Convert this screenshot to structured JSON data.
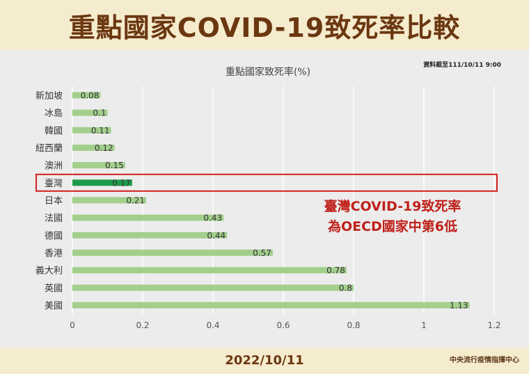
{
  "header": {
    "title": "重點國家COVID-19致死率比較"
  },
  "note": "資料截至111/10/11 9:00",
  "footer": {
    "date": "2022/10/11",
    "source": "中央流行疫情指揮中心"
  },
  "callout": {
    "line1": "臺灣COVID-19致死率",
    "line2": "為OECD國家中第6低"
  },
  "colors": {
    "bar": "#a3cf8c",
    "highlight_bar": "#1e9b4a",
    "highlight_box": "#d2201f",
    "grid": "#ffffff"
  },
  "chart_data": {
    "type": "bar",
    "orientation": "horizontal",
    "title": "重點國家致死率(%)",
    "categories": [
      "新加坡",
      "冰島",
      "韓國",
      "紐西蘭",
      "澳洲",
      "臺灣",
      "日本",
      "法國",
      "德國",
      "香港",
      "義大利",
      "英國",
      "美國"
    ],
    "values": [
      0.08,
      0.1,
      0.11,
      0.12,
      0.15,
      0.17,
      0.21,
      0.43,
      0.44,
      0.57,
      0.78,
      0.8,
      1.13
    ],
    "value_labels": [
      "0.08",
      "0.1",
      "0.11",
      "0.12",
      "0.15",
      "0.17",
      "0.21",
      "0.43",
      "0.44",
      "0.57",
      "0.78",
      "0.8",
      "1.13"
    ],
    "highlight": "臺灣",
    "xlim": [
      0,
      1.2
    ],
    "xticks": [
      0,
      0.2,
      0.4,
      0.6,
      0.8,
      1,
      1.2
    ],
    "xtick_labels": [
      "0",
      "0.2",
      "0.4",
      "0.6",
      "0.8",
      "1",
      "1.2"
    ],
    "grid": true
  }
}
